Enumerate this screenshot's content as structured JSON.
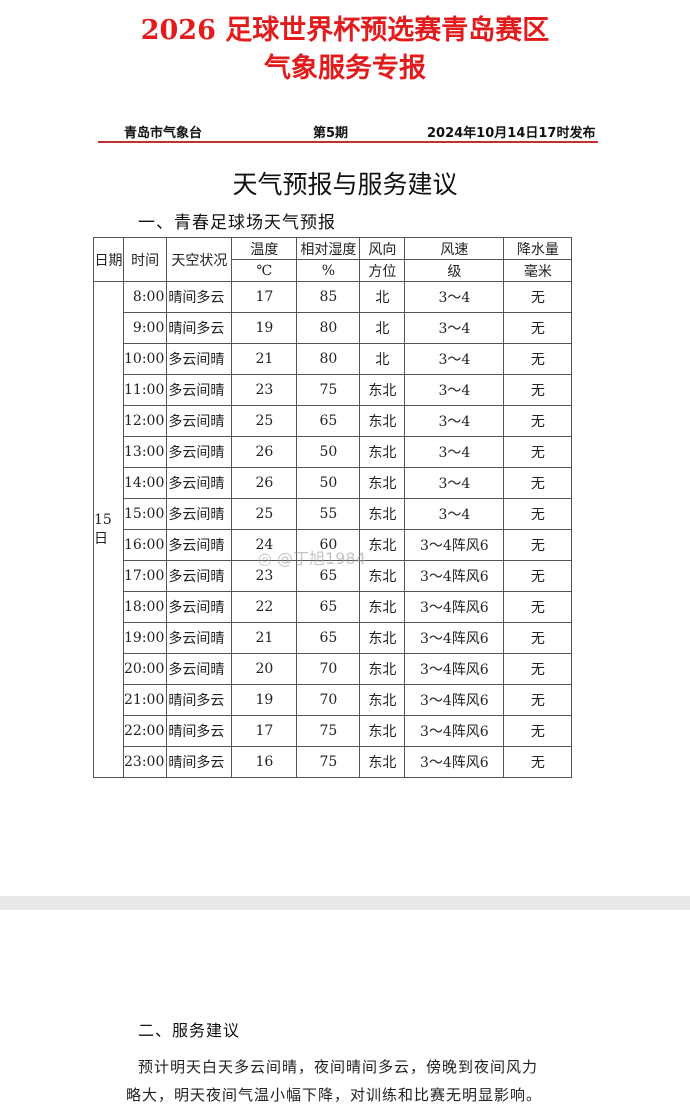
{
  "header": {
    "title_line1": "2026 足球世界杯预选赛青岛赛区",
    "title_line2": "气象服务专报",
    "issuer": "青岛市气象台",
    "issue_no": "第5期",
    "issue_time": "2024年10月14日17时发布"
  },
  "section_title": "天气预报与服务建议",
  "section1": {
    "heading": "一、青春足球场天气预报",
    "columns": {
      "date": "日期",
      "time": "时间",
      "sky": "天空状况",
      "temp": "温度",
      "temp_unit": "℃",
      "humidity": "相对湿度",
      "humidity_unit": "%",
      "wind_dir": "风向",
      "wind_dir_unit": "方位",
      "wind_speed": "风速",
      "wind_speed_unit": "级",
      "precip": "降水量",
      "precip_unit": "毫米"
    },
    "date": "15日",
    "rows": [
      [
        "8:00",
        "晴间多云",
        "17",
        "85",
        "北",
        "3～4",
        "无"
      ],
      [
        "9:00",
        "晴间多云",
        "19",
        "80",
        "北",
        "3～4",
        "无"
      ],
      [
        "10:00",
        "多云间晴",
        "21",
        "80",
        "北",
        "3～4",
        "无"
      ],
      [
        "11:00",
        "多云间晴",
        "23",
        "75",
        "东北",
        "3～4",
        "无"
      ],
      [
        "12:00",
        "多云间晴",
        "25",
        "65",
        "东北",
        "3～4",
        "无"
      ],
      [
        "13:00",
        "多云间晴",
        "26",
        "50",
        "东北",
        "3～4",
        "无"
      ],
      [
        "14:00",
        "多云间晴",
        "26",
        "50",
        "东北",
        "3～4",
        "无"
      ],
      [
        "15:00",
        "多云间晴",
        "25",
        "55",
        "东北",
        "3～4",
        "无"
      ],
      [
        "16:00",
        "多云间晴",
        "24",
        "60",
        "东北",
        "3～4阵风6",
        "无"
      ],
      [
        "17:00",
        "多云间晴",
        "23",
        "65",
        "东北",
        "3～4阵风6",
        "无"
      ],
      [
        "18:00",
        "多云间晴",
        "22",
        "65",
        "东北",
        "3～4阵风6",
        "无"
      ],
      [
        "19:00",
        "多云间晴",
        "21",
        "65",
        "东北",
        "3～4阵风6",
        "无"
      ],
      [
        "20:00",
        "多云间晴",
        "20",
        "70",
        "东北",
        "3～4阵风6",
        "无"
      ],
      [
        "21:00",
        "晴间多云",
        "19",
        "70",
        "东北",
        "3～4阵风6",
        "无"
      ],
      [
        "22:00",
        "晴间多云",
        "17",
        "75",
        "东北",
        "3～4阵风6",
        "无"
      ],
      [
        "23:00",
        "晴间多云",
        "16",
        "75",
        "东北",
        "3～4阵风6",
        "无"
      ]
    ]
  },
  "watermark": "@丁旭1984",
  "section2": {
    "heading": "二、服务建议",
    "text_line1": "预计明天白天多云间晴，夜间晴间多云，傍晚到夜间风力",
    "text_line2": "略大，明天夜间气温小幅下降，对训练和比赛无明显影响。"
  },
  "colors": {
    "title": "#e21c1c",
    "rule": "#c23030"
  }
}
